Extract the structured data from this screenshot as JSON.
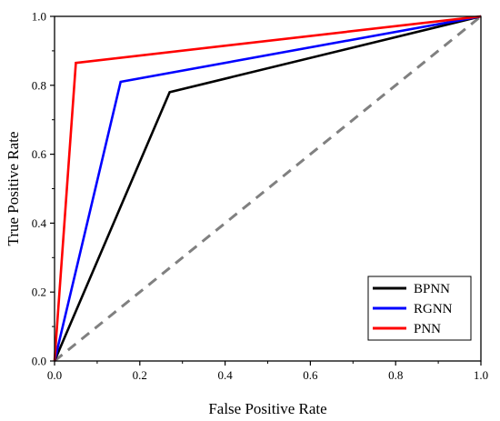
{
  "chart_data": {
    "type": "line",
    "xlabel": "False Positive Rate",
    "ylabel": "True Positive Rate",
    "xlim": [
      0,
      1
    ],
    "ylim": [
      0,
      1
    ],
    "xticks": [
      "0.0",
      "0.2",
      "0.4",
      "0.6",
      "0.8",
      "1.0"
    ],
    "yticks": [
      "0.0",
      "0.2",
      "0.4",
      "0.6",
      "0.8",
      "1.0"
    ],
    "grid": false,
    "legend_position": "bottom-right",
    "series": [
      {
        "name": "BPNN",
        "color": "#000000",
        "x": [
          0,
          0.27,
          1
        ],
        "y": [
          0,
          0.78,
          1
        ]
      },
      {
        "name": "RGNN",
        "color": "#0000ff",
        "x": [
          0,
          0.155,
          1
        ],
        "y": [
          0,
          0.81,
          1
        ]
      },
      {
        "name": "PNN",
        "color": "#ff0000",
        "x": [
          0,
          0.05,
          1
        ],
        "y": [
          0,
          0.865,
          1
        ]
      }
    ],
    "reference_line": {
      "color": "#808080",
      "style": "dashed",
      "x": [
        0,
        1
      ],
      "y": [
        0,
        1
      ]
    }
  }
}
